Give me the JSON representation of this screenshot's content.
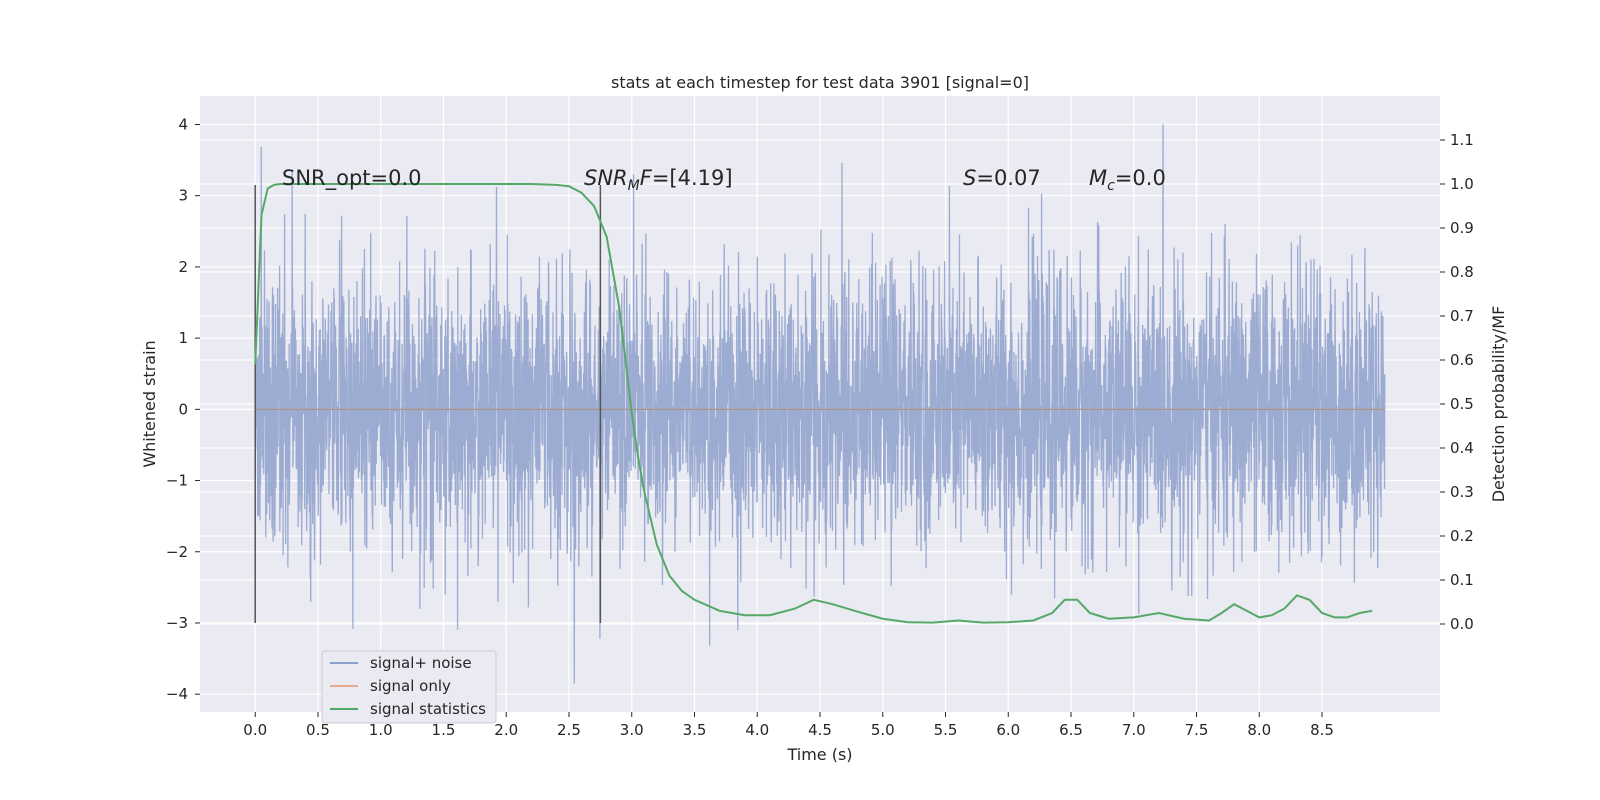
{
  "chart_data": {
    "type": "line",
    "title": "stats at each timestep for test data 3901 [signal=0]",
    "xlabel": "Time (s)",
    "ylabel_left": "Whitened strain",
    "ylabel_right": "Detection probability/MF",
    "xlim": [
      -0.44,
      9.44
    ],
    "ylim_left": [
      -4.25,
      4.4
    ],
    "ylim_right": [
      -0.2,
      1.2
    ],
    "grid": true,
    "legend_position": "lower-left",
    "x_ticks": [
      "0.0",
      "0.5",
      "1.0",
      "1.5",
      "2.0",
      "2.5",
      "3.0",
      "3.5",
      "4.0",
      "4.5",
      "5.0",
      "5.5",
      "6.0",
      "6.5",
      "7.0",
      "7.5",
      "8.0",
      "8.5"
    ],
    "y_left_ticks": [
      "4",
      "3",
      "2",
      "1",
      "0",
      "−1",
      "−2",
      "−3",
      "−4"
    ],
    "y_right_ticks": [
      "1.1",
      "1.0",
      "0.9",
      "0.8",
      "0.7",
      "0.6",
      "0.5",
      "0.4",
      "0.3",
      "0.2",
      "0.1",
      "0.0"
    ],
    "annotations": {
      "snr_opt": "SNR_opt=0.0",
      "snr_mf_sym": "SNR",
      "snr_mf_sub": "M",
      "snr_mf_sym2": "F",
      "snr_mf_val": "=[4.19]",
      "s_sym": "S",
      "s_val": "=0.07",
      "mc_sym": "M",
      "mc_sub": "c",
      "mc_val": "=0.0"
    },
    "vertical_markers": [
      0.0,
      2.75
    ],
    "vertical_marker_range": [
      -3.0,
      3.15
    ],
    "series": [
      {
        "name": "signal+ noise",
        "color": "#8da0cb",
        "description_range": [
          -3.85,
          4.0
        ],
        "noise_sigma": 0.95,
        "x_range": [
          0.0,
          9.0
        ]
      },
      {
        "name": "signal only",
        "color": "#e9a98b",
        "x": [
          0.0,
          9.0
        ],
        "y": [
          0.0,
          0.0
        ]
      },
      {
        "name": "signal statistics",
        "color": "#55a868",
        "axis": "right",
        "x": [
          0.0,
          0.05,
          0.1,
          0.15,
          0.2,
          0.3,
          0.5,
          1.0,
          1.5,
          2.0,
          2.2,
          2.4,
          2.5,
          2.6,
          2.7,
          2.8,
          2.9,
          3.0,
          3.05,
          3.1,
          3.2,
          3.3,
          3.4,
          3.5,
          3.7,
          3.9,
          4.1,
          4.3,
          4.45,
          4.6,
          4.8,
          5.0,
          5.2,
          5.4,
          5.6,
          5.8,
          6.0,
          6.2,
          6.35,
          6.45,
          6.55,
          6.65,
          6.8,
          7.0,
          7.2,
          7.4,
          7.6,
          7.7,
          7.8,
          7.9,
          8.0,
          8.1,
          8.2,
          8.3,
          8.4,
          8.5,
          8.6,
          8.7,
          8.8,
          8.9
        ],
        "y": [
          0.59,
          0.93,
          0.99,
          0.998,
          1.0,
          1.0,
          1.0,
          1.0,
          1.0,
          1.0,
          1.0,
          0.998,
          0.995,
          0.98,
          0.95,
          0.88,
          0.72,
          0.48,
          0.38,
          0.3,
          0.18,
          0.11,
          0.075,
          0.055,
          0.03,
          0.02,
          0.02,
          0.035,
          0.055,
          0.045,
          0.028,
          0.012,
          0.004,
          0.003,
          0.008,
          0.003,
          0.004,
          0.008,
          0.025,
          0.055,
          0.055,
          0.025,
          0.012,
          0.015,
          0.025,
          0.012,
          0.008,
          0.025,
          0.045,
          0.03,
          0.015,
          0.02,
          0.035,
          0.065,
          0.055,
          0.025,
          0.015,
          0.015,
          0.025,
          0.03
        ]
      }
    ]
  }
}
